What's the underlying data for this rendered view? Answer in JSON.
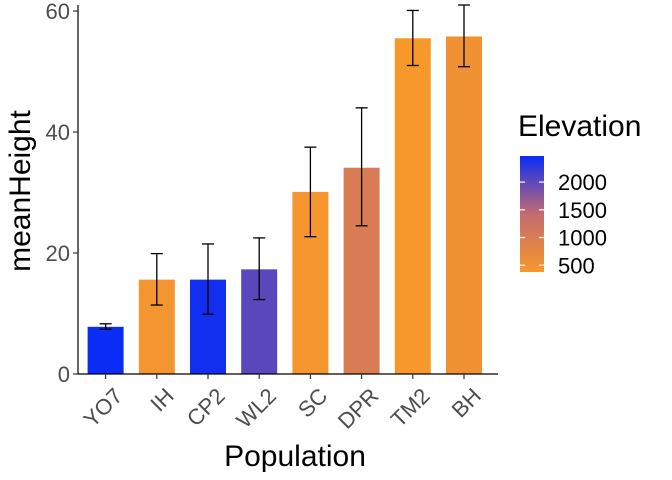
{
  "chart_data": {
    "type": "bar",
    "title": "",
    "xlabel": "Population",
    "ylabel": "meanHeight",
    "ylim": [
      0,
      61
    ],
    "yticks": [
      0,
      20,
      40,
      60
    ],
    "grid": false,
    "legend_position": "right",
    "categories": [
      "YO7",
      "IH",
      "CP2",
      "WL2",
      "SC",
      "DPR",
      "TM2",
      "BH"
    ],
    "values": [
      7.8,
      15.6,
      15.6,
      17.3,
      30.1,
      34.1,
      55.5,
      55.8
    ],
    "error_upper": [
      8.3,
      19.9,
      21.5,
      22.5,
      37.5,
      44.0,
      60.1,
      61.0
    ],
    "error_lower": [
      7.4,
      11.4,
      9.9,
      12.3,
      22.7,
      24.5,
      51.0,
      50.8
    ],
    "elevation": [
      2470,
      454,
      2422,
      2020,
      422,
      1019,
      379,
      511
    ],
    "legend": {
      "title": "Elevation",
      "ticks": [
        "2000",
        "1500",
        "1000",
        "500"
      ],
      "tick_values": [
        2000,
        1500,
        1000,
        500
      ],
      "range": [
        379,
        2470
      ],
      "colors": {
        "low": "#f7982b",
        "mid": "#c36b70",
        "high": "#0a2cf5"
      }
    }
  }
}
